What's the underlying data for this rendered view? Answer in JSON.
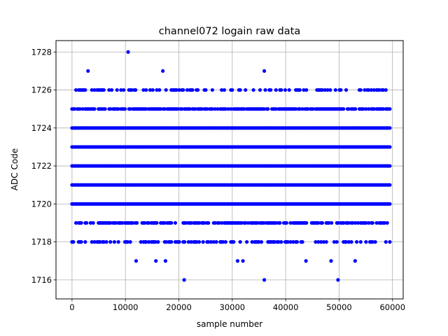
{
  "chart_data": {
    "type": "scatter",
    "title": "channel072 logain raw data",
    "xlabel": "sample number",
    "ylabel": "ADC Code",
    "xlim": [
      -3000,
      62000
    ],
    "ylim": [
      1715.0,
      1728.6
    ],
    "xticks": [
      0,
      10000,
      20000,
      30000,
      40000,
      50000,
      60000
    ],
    "yticks": [
      1716,
      1718,
      1720,
      1722,
      1724,
      1726,
      1728
    ],
    "grid": true,
    "marker_color": "#0000ff",
    "series": [
      {
        "dense_levels": [
          1720,
          1721,
          1722,
          1723,
          1724
        ],
        "dense_range": [
          0,
          59500
        ],
        "sparse_levels": [
          {
            "y": 1725,
            "x_start": 0,
            "x_end": 59500,
            "density": 0.8
          },
          {
            "y": 1719,
            "x_start": 0,
            "x_end": 59500,
            "density": 0.7
          },
          {
            "y": 1726,
            "x_start": 0,
            "x_end": 59500,
            "density": 0.42
          },
          {
            "y": 1718,
            "x_start": 0,
            "x_end": 59500,
            "density": 0.45
          }
        ],
        "outliers": [
          {
            "x": 10500,
            "y": 1728
          },
          {
            "x": 3000,
            "y": 1727
          },
          {
            "x": 17000,
            "y": 1727
          },
          {
            "x": 36000,
            "y": 1727
          },
          {
            "x": 12000,
            "y": 1717
          },
          {
            "x": 15700,
            "y": 1717
          },
          {
            "x": 17500,
            "y": 1717
          },
          {
            "x": 31000,
            "y": 1717
          },
          {
            "x": 32000,
            "y": 1717
          },
          {
            "x": 43800,
            "y": 1717
          },
          {
            "x": 48500,
            "y": 1717
          },
          {
            "x": 53000,
            "y": 1717
          },
          {
            "x": 21000,
            "y": 1716
          },
          {
            "x": 36000,
            "y": 1716
          },
          {
            "x": 49800,
            "y": 1716
          }
        ]
      }
    ]
  }
}
